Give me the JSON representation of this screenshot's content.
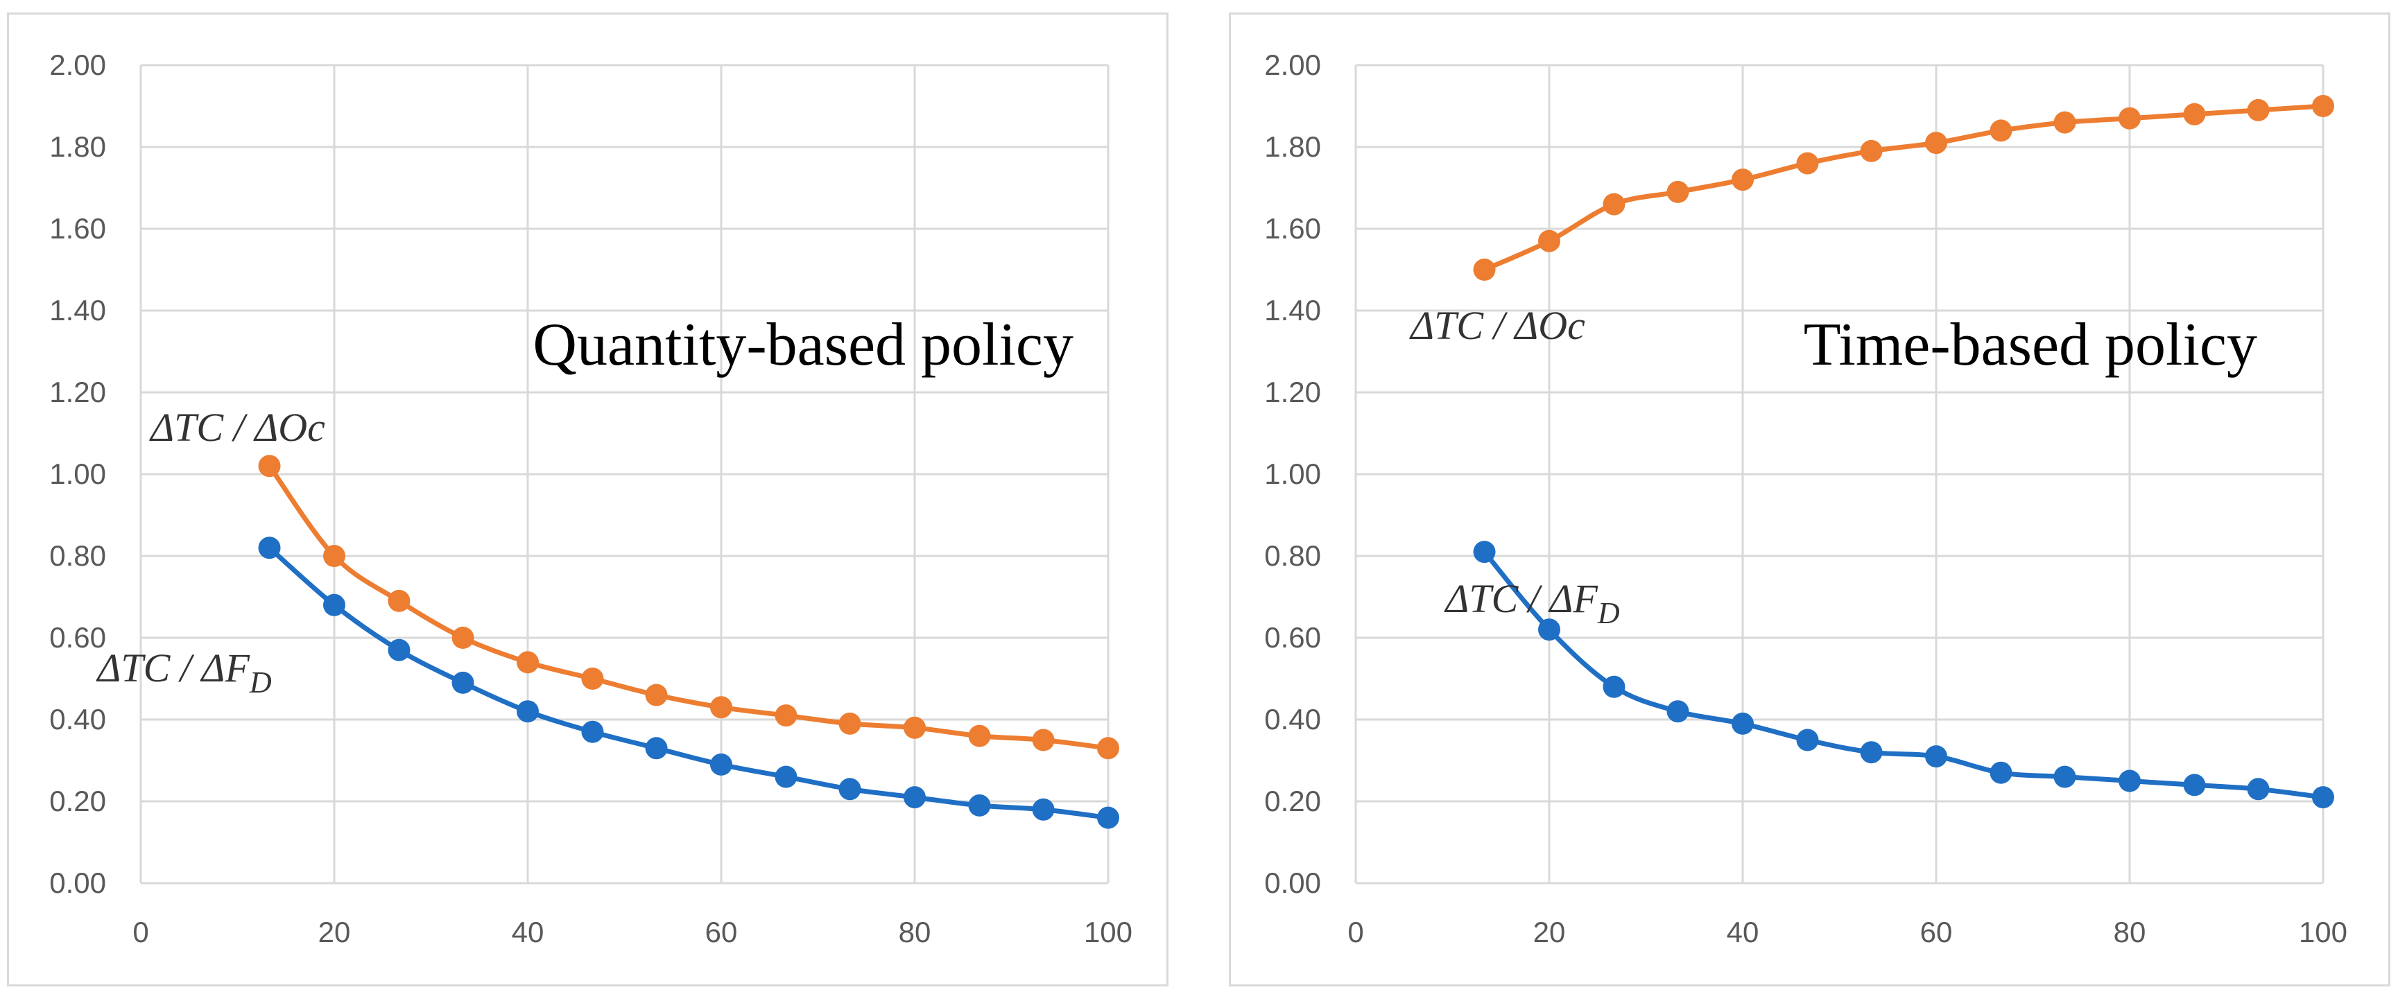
{
  "chart_data": [
    {
      "type": "line",
      "title": "Quantity-based policy",
      "xlabel": "",
      "ylabel": "",
      "xlim": [
        0,
        100
      ],
      "ylim": [
        0,
        2
      ],
      "x_ticks": [
        "0",
        "20",
        "40",
        "60",
        "80",
        "100"
      ],
      "y_ticks": [
        "0.00",
        "0.20",
        "0.40",
        "0.60",
        "0.80",
        "1.00",
        "1.20",
        "1.40",
        "1.60",
        "1.80",
        "2.00"
      ],
      "grid": true,
      "x": [
        13.3,
        20,
        26.7,
        33.3,
        40,
        46.7,
        53.3,
        60,
        66.7,
        73.3,
        80,
        86.7,
        93.3,
        100
      ],
      "series": [
        {
          "name": "ΔTC / ΔOc",
          "label_parts": [
            "ΔTC / ΔOc"
          ],
          "color": "#ED7D31",
          "values": [
            1.02,
            0.8,
            0.69,
            0.6,
            0.54,
            0.5,
            0.46,
            0.43,
            0.41,
            0.39,
            0.38,
            0.36,
            0.35,
            0.33
          ]
        },
        {
          "name": "ΔTC / ΔFD",
          "label_parts": [
            "ΔTC / ΔF",
            "D"
          ],
          "color": "#1F6FC5",
          "values": [
            0.82,
            0.68,
            0.57,
            0.49,
            0.42,
            0.37,
            0.33,
            0.29,
            0.26,
            0.23,
            0.21,
            0.19,
            0.18,
            0.16
          ]
        }
      ]
    },
    {
      "type": "line",
      "title": "Time-based policy",
      "xlabel": "",
      "ylabel": "",
      "xlim": [
        0,
        100
      ],
      "ylim": [
        0,
        2
      ],
      "x_ticks": [
        "0",
        "20",
        "40",
        "60",
        "80",
        "100"
      ],
      "y_ticks": [
        "0.00",
        "0.20",
        "0.40",
        "0.60",
        "0.80",
        "1.00",
        "1.20",
        "1.40",
        "1.60",
        "1.80",
        "2.00"
      ],
      "grid": true,
      "x": [
        13.3,
        20,
        26.7,
        33.3,
        40,
        46.7,
        53.3,
        60,
        66.7,
        73.3,
        80,
        86.7,
        93.3,
        100
      ],
      "series": [
        {
          "name": "ΔTC / ΔOc",
          "label_parts": [
            "ΔTC / ΔOc"
          ],
          "color": "#ED7D31",
          "values": [
            1.5,
            1.57,
            1.66,
            1.69,
            1.72,
            1.76,
            1.79,
            1.81,
            1.84,
            1.86,
            1.87,
            1.88,
            1.89,
            1.9
          ]
        },
        {
          "name": "ΔTC / ΔFD",
          "label_parts": [
            "ΔTC / ΔF",
            "D"
          ],
          "color": "#1F6FC5",
          "values": [
            0.81,
            0.62,
            0.48,
            0.42,
            0.39,
            0.35,
            0.32,
            0.31,
            0.27,
            0.26,
            0.25,
            0.24,
            0.23,
            0.21
          ]
        }
      ]
    }
  ]
}
